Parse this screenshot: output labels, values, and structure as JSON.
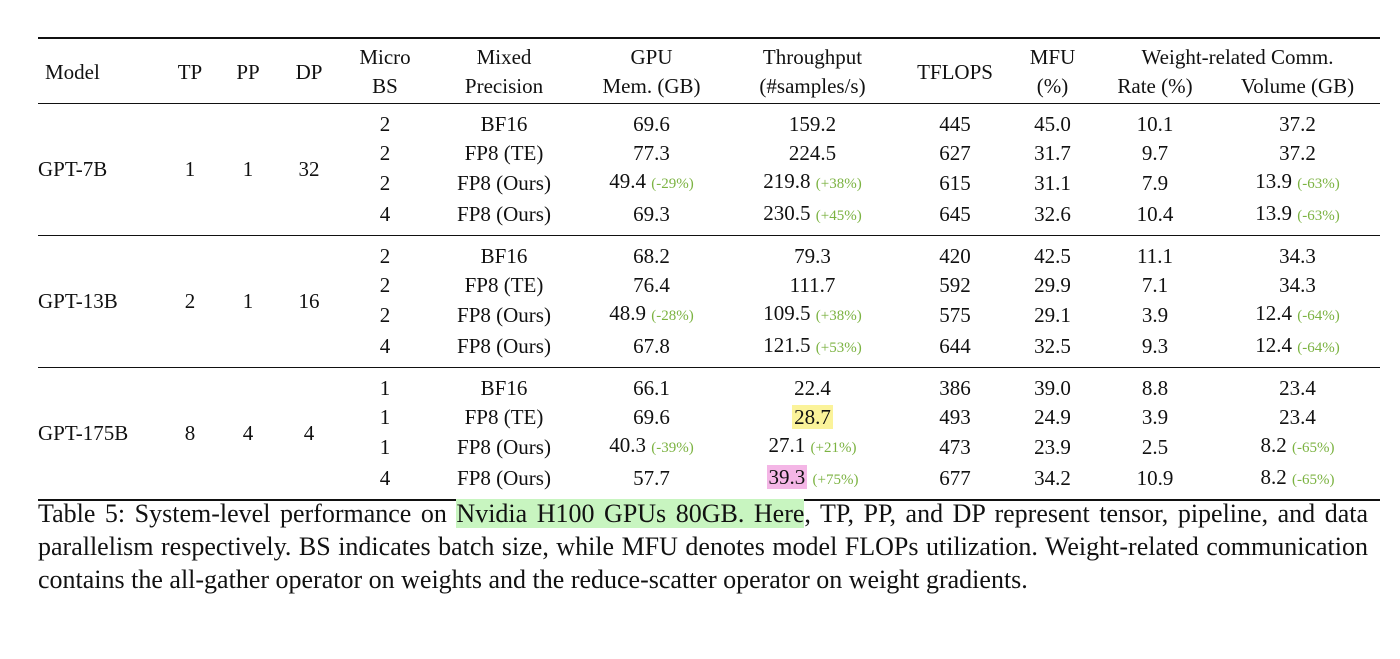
{
  "table": {
    "columns": [
      [
        "Model"
      ],
      [
        "TP"
      ],
      [
        "PP"
      ],
      [
        "DP"
      ],
      [
        "Micro",
        "BS"
      ],
      [
        "Mixed",
        "Precision"
      ],
      [
        "GPU",
        "Mem. (GB)"
      ],
      [
        "Throughput",
        "(#samples/s)"
      ],
      [
        "TFLOPS"
      ],
      [
        "MFU",
        "(%)"
      ],
      [
        "Rate (%)"
      ],
      [
        "Volume (GB)"
      ]
    ],
    "group_header": "Weight-related Comm.",
    "groups": [
      {
        "model": "GPT-7B",
        "tp": "1",
        "pp": "1",
        "dp": "32",
        "rows": [
          [
            "2",
            "BF16",
            "69.6",
            "159.2",
            "445",
            "45.0",
            "10.1",
            "37.2"
          ],
          [
            "2",
            "FP8 (TE)",
            "77.3",
            "224.5",
            "627",
            "31.7",
            "9.7",
            "37.2"
          ],
          [
            "2",
            "FP8 (Ours)",
            {
              "text": "49.4",
              "delta": "(-29%)"
            },
            {
              "text": "219.8",
              "delta": "(+38%)"
            },
            "615",
            "31.1",
            "7.9",
            {
              "text": "13.9",
              "delta": "(-63%)"
            }
          ],
          [
            "4",
            "FP8 (Ours)",
            "69.3",
            {
              "text": "230.5",
              "delta": "(+45%)"
            },
            "645",
            "32.6",
            "10.4",
            {
              "text": "13.9",
              "delta": "(-63%)"
            }
          ]
        ]
      },
      {
        "model": "GPT-13B",
        "tp": "2",
        "pp": "1",
        "dp": "16",
        "rows": [
          [
            "2",
            "BF16",
            "68.2",
            "79.3",
            "420",
            "42.5",
            "11.1",
            "34.3"
          ],
          [
            "2",
            "FP8 (TE)",
            "76.4",
            "111.7",
            "592",
            "29.9",
            "7.1",
            "34.3"
          ],
          [
            "2",
            "FP8 (Ours)",
            {
              "text": "48.9",
              "delta": "(-28%)"
            },
            {
              "text": "109.5",
              "delta": "(+38%)"
            },
            "575",
            "29.1",
            "3.9",
            {
              "text": "12.4",
              "delta": "(-64%)"
            }
          ],
          [
            "4",
            "FP8 (Ours)",
            "67.8",
            {
              "text": "121.5",
              "delta": "(+53%)"
            },
            "644",
            "32.5",
            "9.3",
            {
              "text": "12.4",
              "delta": "(-64%)"
            }
          ]
        ]
      },
      {
        "model": "GPT-175B",
        "tp": "8",
        "pp": "4",
        "dp": "4",
        "rows": [
          [
            "1",
            "BF16",
            "66.1",
            "22.4",
            "386",
            "39.0",
            "8.8",
            "23.4"
          ],
          [
            "1",
            "FP8 (TE)",
            "69.6",
            {
              "text": "28.7",
              "highlight": "#fbf39a"
            },
            "493",
            "24.9",
            "3.9",
            "23.4"
          ],
          [
            "1",
            "FP8 (Ours)",
            {
              "text": "40.3",
              "delta": "(-39%)"
            },
            {
              "text": "27.1",
              "delta": "(+21%)"
            },
            "473",
            "23.9",
            "2.5",
            {
              "text": "8.2",
              "delta": "(-65%)"
            }
          ],
          [
            "4",
            "FP8 (Ours)",
            "57.7",
            {
              "text": "39.3",
              "highlight": "#f4b6e6",
              "delta": "(+75%)"
            },
            "677",
            "34.2",
            "10.9",
            {
              "text": "8.2",
              "delta": "(-65%)"
            }
          ]
        ]
      }
    ]
  },
  "caption": [
    {
      "text": "Table 5: System-level performance on "
    },
    {
      "text": "Nvidia H100 GPUs 80GB. Here",
      "highlight": "#c8f5c0"
    },
    {
      "text": ", TP, PP, and DP represent tensor, pipeline, and data parallelism respectively. BS indicates batch size, while MFU denotes model FLOPs utilization. Weight-related communication contains the all-gather operator on weights and the reduce-scatter operator on weight gradients."
    }
  ]
}
